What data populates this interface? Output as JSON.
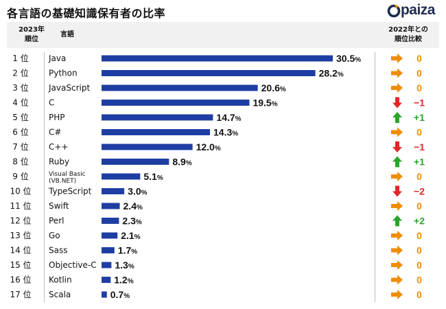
{
  "title": "各言語の基礎知識保有者の比率",
  "logo_text": "paiza",
  "header": {
    "rank_line1": "2023年",
    "rank_line2": "順位",
    "language": "言語",
    "compare_line1": "2022年との",
    "compare_line2": "順位比較"
  },
  "colors": {
    "bar": "#1f3ea3",
    "up": "#2aa52a",
    "down": "#e02828",
    "same": "#f08c00",
    "header_bg": "#f1f1f1"
  },
  "chart_data": {
    "type": "bar",
    "orientation": "horizontal",
    "unit": "%",
    "categories": [
      "Java",
      "Python",
      "JavaScript",
      "C",
      "PHP",
      "C#",
      "C++",
      "Ruby",
      "Visual Basic (VB.NET)",
      "TypeScript",
      "Swift",
      "Perl",
      "Go",
      "Sass",
      "Objective-C",
      "Kotlin",
      "Scala"
    ],
    "rank_labels": [
      "1 位",
      "2 位",
      "3 位",
      "4 位",
      "5 位",
      "6 位",
      "7 位",
      "8 位",
      "9 位",
      "10 位",
      "11 位",
      "12 位",
      "13 位",
      "14 位",
      "15 位",
      "16 位",
      "17 位"
    ],
    "values": [
      30.5,
      28.2,
      20.6,
      19.5,
      14.7,
      14.3,
      12.0,
      8.9,
      5.1,
      3.0,
      2.4,
      2.3,
      2.1,
      1.7,
      1.3,
      1.2,
      0.7
    ],
    "value_labels": [
      "30.5",
      "28.2",
      "20.6",
      "19.5",
      "14.7",
      "14.3",
      "12.0",
      "8.9",
      "5.1",
      "3.0",
      "2.4",
      "2.3",
      "2.1",
      "1.7",
      "1.3",
      "1.2",
      "0.7"
    ],
    "rank_change": [
      "0",
      "0",
      "0",
      "−1",
      "+1",
      "0",
      "−1",
      "+1",
      "0",
      "−2",
      "0",
      "+2",
      "0",
      "0",
      "0",
      "0",
      "0"
    ],
    "change_direction": [
      "same",
      "same",
      "same",
      "down",
      "up",
      "same",
      "down",
      "up",
      "same",
      "down",
      "same",
      "up",
      "same",
      "same",
      "same",
      "same",
      "same"
    ]
  }
}
